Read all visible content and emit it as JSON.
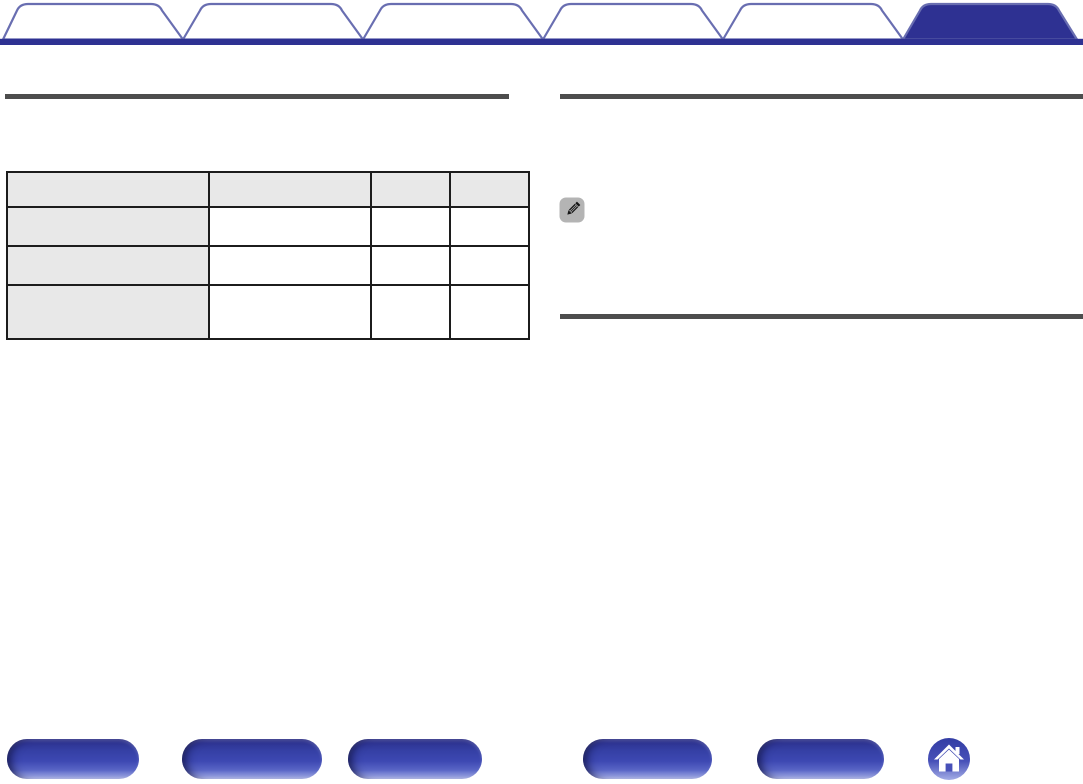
{
  "colors": {
    "accent": "#2e3192",
    "tab_outline": "#696eb1",
    "tab_inactive_fill": "#ffffff",
    "section_rule": "#4d4d4d",
    "table_border": "#1c1c1c",
    "table_shade": "#e8e8e8",
    "note_icon_bg": "#b4b4b4",
    "note_icon_glyph": "#161616",
    "button_gradient_top": "#2b2e8a",
    "button_gradient_bottom": "#bcc3ef",
    "home_icon_glyph": "#ffffff"
  },
  "tab_bar": {
    "tabs": [
      {
        "id": "tab-1",
        "label": "",
        "active": false
      },
      {
        "id": "tab-2",
        "label": "",
        "active": false
      },
      {
        "id": "tab-3",
        "label": "",
        "active": false
      },
      {
        "id": "tab-4",
        "label": "",
        "active": false
      },
      {
        "id": "tab-5",
        "label": "",
        "active": false
      },
      {
        "id": "tab-6",
        "label": "",
        "active": true
      }
    ]
  },
  "left_column": {
    "table": {
      "header": {
        "diagonal_cell": "",
        "columns": [
          "",
          "",
          ""
        ]
      },
      "rows": [
        {
          "label": "",
          "cells": [
            "",
            "",
            ""
          ]
        },
        {
          "label": "",
          "cells": [
            "",
            "",
            ""
          ]
        },
        {
          "label": "",
          "cells": [
            "",
            "",
            ""
          ]
        }
      ]
    }
  },
  "right_column": {
    "note": {
      "icon": "pencil-note-icon",
      "text": ""
    }
  },
  "footer": {
    "nav_buttons": [
      {
        "id": "nav-button-1",
        "label": ""
      },
      {
        "id": "nav-button-2",
        "label": ""
      },
      {
        "id": "nav-button-3",
        "label": ""
      },
      {
        "id": "nav-button-4",
        "label": ""
      },
      {
        "id": "nav-button-5",
        "label": ""
      }
    ],
    "home_button": {
      "icon": "home-icon",
      "label": ""
    }
  }
}
